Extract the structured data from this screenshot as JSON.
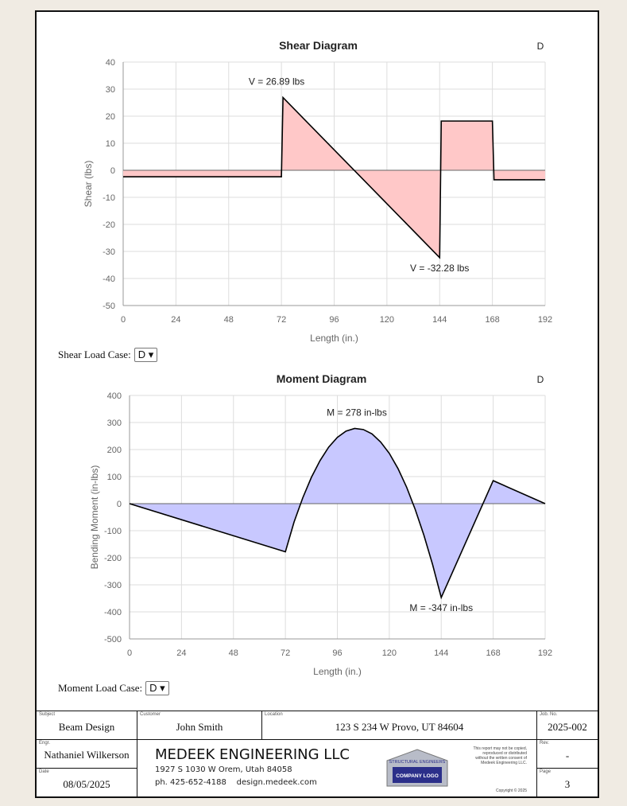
{
  "chart_data": [
    {
      "type": "line",
      "title": "Shear Diagram",
      "corner_label": "D",
      "xlabel": "Length (in.)",
      "ylabel": "Shear (lbs)",
      "xlim": [
        0,
        192
      ],
      "ylim": [
        -50,
        40
      ],
      "xticks": [
        0,
        24,
        48,
        72,
        96,
        120,
        144,
        168,
        192
      ],
      "yticks": [
        40,
        30,
        20,
        10,
        0,
        -10,
        -20,
        -30,
        -40,
        -50
      ],
      "x": [
        0,
        72,
        72,
        144,
        144,
        168,
        168,
        192
      ],
      "y": [
        -2.4,
        -2.4,
        26.89,
        -32.28,
        18.2,
        18.2,
        -3.5,
        -3.5
      ],
      "fill": "#ffc8c8",
      "annotations": [
        {
          "text": "V = 26.89 lbs",
          "x": 72,
          "y": 26.89
        },
        {
          "text": "V = -32.28 lbs",
          "x": 144,
          "y": -32.28
        }
      ]
    },
    {
      "type": "line",
      "title": "Moment Diagram",
      "corner_label": "D",
      "xlabel": "Length (in.)",
      "ylabel": "Bending Moment (in-lbs)",
      "xlim": [
        0,
        192
      ],
      "ylim": [
        -500,
        400
      ],
      "xticks": [
        0,
        24,
        48,
        72,
        96,
        120,
        144,
        168,
        192
      ],
      "yticks": [
        400,
        300,
        200,
        100,
        0,
        -100,
        -200,
        -300,
        -400,
        -500
      ],
      "x": [
        0,
        72,
        76,
        80,
        84,
        88,
        92,
        96,
        100,
        104,
        108,
        112,
        116,
        120,
        124,
        128,
        132,
        136,
        140,
        144,
        168,
        192
      ],
      "y": [
        0,
        -178,
        -68,
        21,
        97,
        159,
        209,
        245,
        268,
        278,
        274,
        258,
        228,
        186,
        130,
        61,
        -22,
        -117,
        -225,
        -347,
        85,
        0
      ],
      "fill": "#c8c8ff",
      "annotations": [
        {
          "text": "M = 278 in-lbs",
          "x": 105,
          "y": 278
        },
        {
          "text": "M = -347 in-lbs",
          "x": 144,
          "y": -347
        }
      ]
    }
  ],
  "shear_load_case": {
    "label": "Shear Load Case:",
    "value": "D"
  },
  "moment_load_case": {
    "label": "Moment Load Case:",
    "value": "D"
  },
  "title_block": {
    "subject": {
      "label": "Subject",
      "value": "Beam Design"
    },
    "customer": {
      "label": "Customer",
      "value": "John Smith"
    },
    "location": {
      "label": "Location",
      "value": "123 S 234 W Provo, UT 84604"
    },
    "job": {
      "label": "Job. No.",
      "value": "2025-002"
    },
    "engr": {
      "label": "Engr.",
      "value": "Nathaniel Wilkerson"
    },
    "date": {
      "label": "Date",
      "value": "08/05/2025"
    },
    "rev": {
      "label": "Rev.",
      "value": "-"
    },
    "page": {
      "label": "Page",
      "value": "3"
    },
    "company": "MEDEEK ENGINEERING LLC",
    "address": "1927 S 1030 W Orem, Utah 84058",
    "phone": "ph. 425-652-4188",
    "website": "design.medeek.com",
    "logo_top": "STRUCTURAL ENGINEERS",
    "logo_bottom": "COMPANY LOGO",
    "notice": "This report may not be copied, reproduced or distributed without the written consent of Medeek Engineering LLC.",
    "copyright": "Copyright © 2025"
  }
}
